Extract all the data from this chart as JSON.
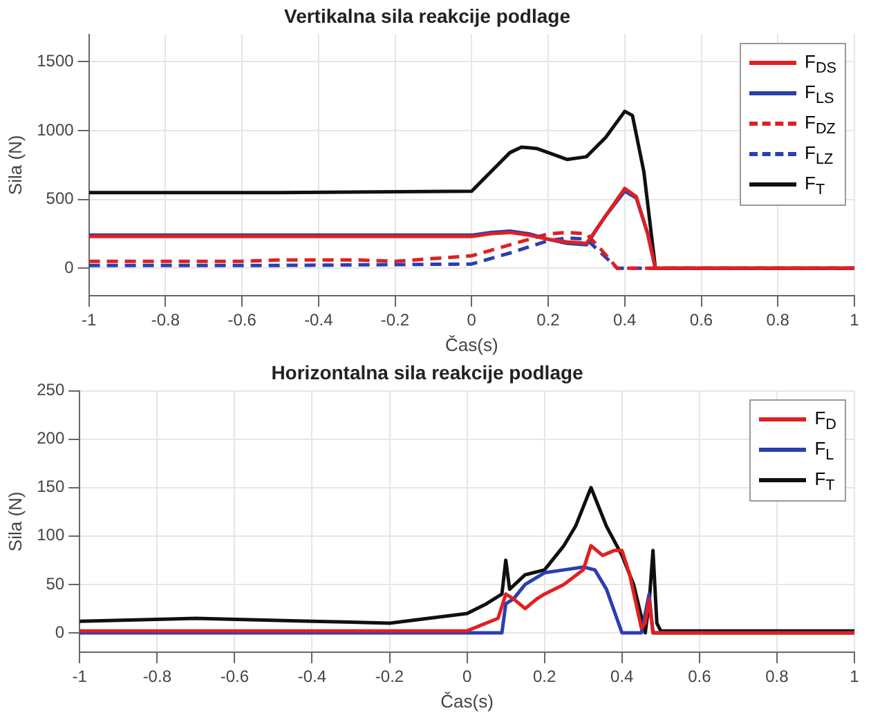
{
  "chart_data": [
    {
      "type": "line",
      "title": "Vertikalna sila reakcije podlage",
      "xlabel": "Čas(s)",
      "ylabel": "Sila (N)",
      "xlim": [
        -1,
        1
      ],
      "xticks": [
        -1,
        -0.8,
        -0.6,
        -0.4,
        -0.2,
        0,
        0.2,
        0.4,
        0.6,
        0.8,
        1
      ],
      "ylim": [
        -200,
        1700
      ],
      "yticks": [
        0,
        500,
        1000,
        1500
      ],
      "grid": true,
      "legend": "top right",
      "marker": "none",
      "series": [
        {
          "name": "F$_{DS}$",
          "color": "#e02020",
          "line_style": "solid",
          "x": [
            -1,
            -0.5,
            0,
            0.05,
            0.1,
            0.15,
            0.2,
            0.25,
            0.3,
            0.35,
            0.4,
            0.43,
            0.46,
            0.48,
            0.5,
            1
          ],
          "values": [
            230,
            230,
            230,
            250,
            260,
            240,
            210,
            190,
            180,
            380,
            580,
            520,
            250,
            0,
            0,
            0
          ]
        },
        {
          "name": "F$_{LS}$",
          "color": "#2a3fb0",
          "line_style": "solid",
          "x": [
            -1,
            -0.5,
            0,
            0.05,
            0.1,
            0.15,
            0.2,
            0.25,
            0.3,
            0.35,
            0.4,
            0.43,
            0.46,
            0.48
          ],
          "values": [
            240,
            240,
            240,
            260,
            270,
            250,
            210,
            180,
            170,
            380,
            560,
            510,
            250,
            0
          ]
        },
        {
          "name": "F$_{DZ}$",
          "color": "#e02020",
          "line_style": "dashed",
          "x": [
            -1,
            -0.6,
            -0.5,
            -0.3,
            -0.2,
            0,
            0.1,
            0.2,
            0.25,
            0.3,
            0.34,
            0.38,
            0.5,
            1
          ],
          "values": [
            50,
            50,
            60,
            60,
            50,
            90,
            170,
            250,
            260,
            250,
            130,
            0,
            0,
            0
          ]
        },
        {
          "name": "F$_{LZ}$",
          "color": "#2a3fb0",
          "line_style": "dashed",
          "x": [
            -1,
            -0.5,
            0,
            0.1,
            0.2,
            0.25,
            0.3,
            0.35,
            0.38,
            0.5,
            1
          ],
          "values": [
            20,
            20,
            30,
            110,
            200,
            220,
            210,
            80,
            0,
            0,
            0
          ]
        },
        {
          "name": "F$_{T}$",
          "color": "#101010",
          "line_style": "solid",
          "x": [
            -1,
            -0.5,
            0,
            0.05,
            0.1,
            0.13,
            0.17,
            0.2,
            0.25,
            0.3,
            0.35,
            0.4,
            0.42,
            0.45,
            0.48,
            0.5,
            1
          ],
          "values": [
            550,
            550,
            560,
            700,
            840,
            880,
            870,
            840,
            790,
            810,
            950,
            1140,
            1110,
            700,
            0,
            0,
            0
          ]
        }
      ]
    },
    {
      "type": "line",
      "title": "Horizontalna sila reakcije podlage",
      "xlabel": "Čas(s)",
      "ylabel": "Sila (N)",
      "xlim": [
        -1,
        1
      ],
      "xticks": [
        -1,
        -0.8,
        -0.6,
        -0.4,
        -0.2,
        0,
        0.2,
        0.4,
        0.6,
        0.8,
        1
      ],
      "ylim": [
        -20,
        250
      ],
      "yticks": [
        0,
        50,
        100,
        150,
        200,
        250
      ],
      "grid": true,
      "legend": "top right",
      "marker": "none",
      "series": [
        {
          "name": "F$_{D}$",
          "color": "#e02020",
          "line_style": "solid",
          "x": [
            -1,
            0,
            0.08,
            0.1,
            0.12,
            0.15,
            0.18,
            0.2,
            0.25,
            0.3,
            0.32,
            0.35,
            0.38,
            0.4,
            0.42,
            0.45,
            0.46,
            0.47,
            0.48,
            0.5,
            1
          ],
          "values": [
            2,
            2,
            15,
            40,
            35,
            25,
            35,
            40,
            50,
            65,
            90,
            80,
            85,
            85,
            60,
            5,
            10,
            35,
            0,
            0,
            0
          ]
        },
        {
          "name": "F$_{L}$",
          "color": "#2a3fb0",
          "line_style": "solid",
          "x": [
            -1,
            -0.5,
            0,
            0.09,
            0.1,
            0.12,
            0.15,
            0.2,
            0.25,
            0.3,
            0.33,
            0.36,
            0.4,
            0.45,
            0.47,
            0.48,
            0.5,
            1
          ],
          "values": [
            0,
            0,
            0,
            0,
            30,
            35,
            50,
            62,
            65,
            68,
            65,
            45,
            0,
            0,
            40,
            0,
            0,
            0
          ]
        },
        {
          "name": "F$_{T}$",
          "color": "#101010",
          "line_style": "solid",
          "x": [
            -1,
            -0.7,
            -0.4,
            -0.2,
            0,
            0.05,
            0.09,
            0.1,
            0.11,
            0.15,
            0.2,
            0.25,
            0.28,
            0.32,
            0.34,
            0.36,
            0.4,
            0.43,
            0.46,
            0.47,
            0.48,
            0.49,
            0.5,
            1
          ],
          "values": [
            12,
            15,
            12,
            10,
            20,
            30,
            40,
            75,
            45,
            60,
            65,
            90,
            110,
            150,
            130,
            110,
            80,
            50,
            0,
            30,
            85,
            10,
            2,
            2
          ]
        }
      ]
    }
  ]
}
